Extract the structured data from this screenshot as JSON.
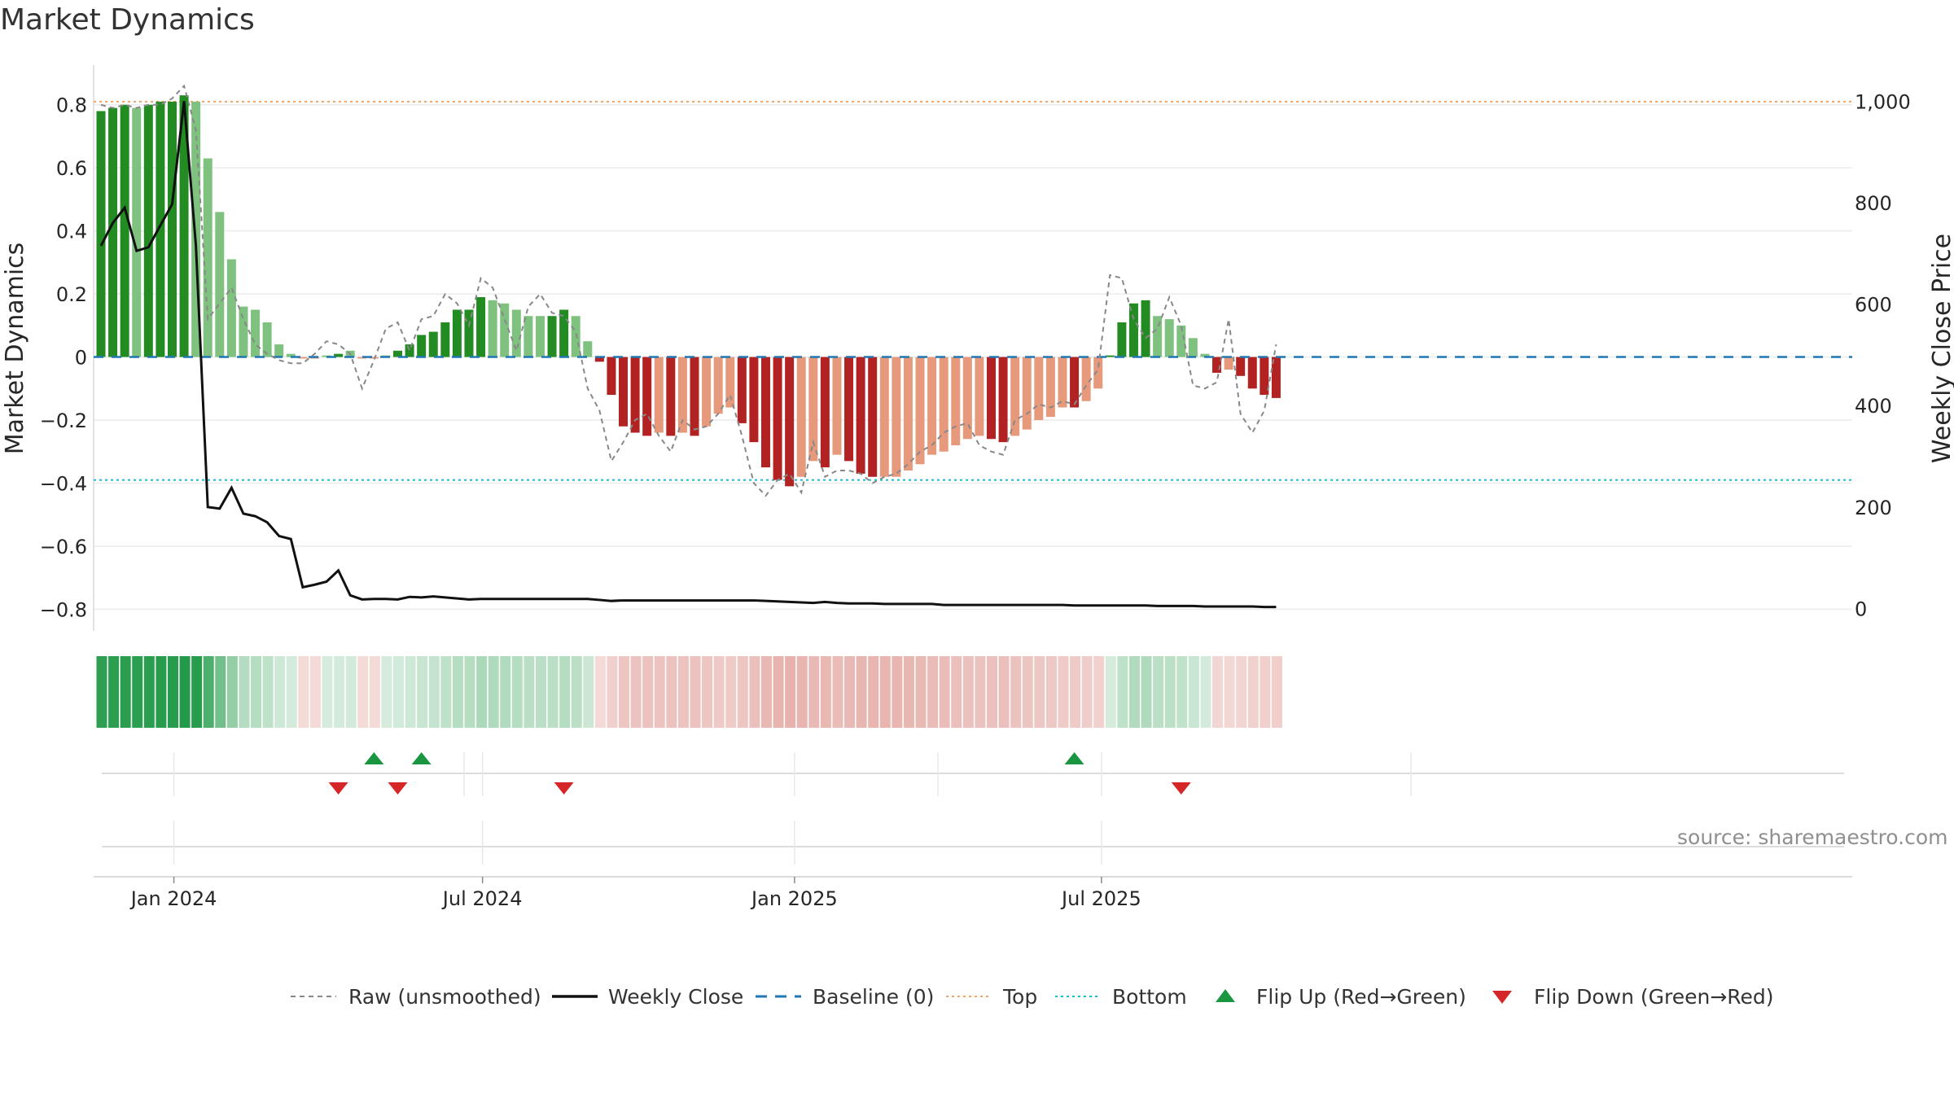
{
  "title": "Market Dynamics",
  "source": "source: sharemaestro.com",
  "colors": {
    "strong_green": "#228b22",
    "light_green": "#7fc17f",
    "strong_red": "#b22222",
    "light_red": "#e79a7b",
    "raw_line": "#888888",
    "close_line": "#111111",
    "baseline": "#1f77b4",
    "top_line": "#f4a460",
    "bottom_line": "#17becf",
    "flip_up": "#1a9641",
    "flip_down": "#d62728"
  },
  "chart_data": {
    "type": "bar",
    "x_start": "2023-11-19",
    "x_step_days": 7,
    "y_left": {
      "label": "Market Dynamics",
      "range": [
        -0.83,
        0.9
      ],
      "ticks": [
        0.8,
        0.6,
        0.4,
        0.2,
        0,
        -0.2,
        -0.4,
        -0.6,
        -0.8
      ],
      "tick_labels": [
        "0.8",
        "0.6",
        "0.4",
        "0.2",
        "0",
        "−0.2",
        "−0.4",
        "−0.6",
        "−0.8"
      ]
    },
    "y_right": {
      "label": "Weekly Close Price",
      "range": [
        -20,
        1055
      ],
      "ticks": [
        0,
        200,
        400,
        600,
        800,
        1000
      ],
      "tick_labels": [
        "0",
        "200",
        "400",
        "600",
        "800",
        "1,000"
      ]
    },
    "x_ticks": [
      {
        "date": "2024-01-01",
        "label": "Jan 2024"
      },
      {
        "date": "2024-07-01",
        "label": "Jul 2024"
      },
      {
        "date": "2025-01-01",
        "label": "Jan 2025"
      },
      {
        "date": "2025-07-01",
        "label": "Jul 2025"
      }
    ],
    "top_threshold": 0.81,
    "bottom_threshold": -0.39,
    "baseline": 0,
    "series": [
      {
        "name": "Market Dynamics",
        "kind": "bar",
        "values": [
          0.78,
          0.79,
          0.8,
          0.79,
          0.8,
          0.81,
          0.81,
          0.83,
          0.81,
          0.63,
          0.46,
          0.31,
          0.16,
          0.15,
          0.11,
          0.04,
          0.01,
          -0.005,
          -0.005,
          0.005,
          0.01,
          0.02,
          -0.005,
          -0.005,
          0.005,
          0.02,
          0.04,
          0.07,
          0.08,
          0.11,
          0.15,
          0.15,
          0.19,
          0.18,
          0.17,
          0.15,
          0.13,
          0.13,
          0.13,
          0.15,
          0.13,
          0.05,
          -0.015,
          -0.12,
          -0.22,
          -0.24,
          -0.25,
          -0.24,
          -0.25,
          -0.24,
          -0.25,
          -0.22,
          -0.18,
          -0.16,
          -0.21,
          -0.27,
          -0.35,
          -0.39,
          -0.41,
          -0.38,
          -0.33,
          -0.35,
          -0.31,
          -0.33,
          -0.37,
          -0.38,
          -0.38,
          -0.38,
          -0.36,
          -0.34,
          -0.31,
          -0.3,
          -0.28,
          -0.26,
          -0.25,
          -0.26,
          -0.27,
          -0.25,
          -0.23,
          -0.2,
          -0.19,
          -0.16,
          -0.16,
          -0.14,
          -0.1,
          0.005,
          0.11,
          0.17,
          0.18,
          0.13,
          0.12,
          0.1,
          0.06,
          0.01,
          -0.05,
          -0.04,
          -0.06,
          -0.1,
          -0.12,
          -0.13
        ],
        "strength": [
          "s",
          "s",
          "s",
          "l",
          "s",
          "s",
          "s",
          "s",
          "l",
          "l",
          "l",
          "l",
          "l",
          "l",
          "l",
          "l",
          "l",
          "l",
          "l",
          "l",
          "s",
          "l",
          "l",
          "l",
          "l",
          "s",
          "s",
          "s",
          "s",
          "s",
          "s",
          "s",
          "s",
          "l",
          "l",
          "l",
          "l",
          "l",
          "s",
          "s",
          "l",
          "l",
          "s",
          "s",
          "s",
          "s",
          "s",
          "l",
          "s",
          "l",
          "s",
          "l",
          "l",
          "l",
          "s",
          "s",
          "s",
          "s",
          "s",
          "l",
          "l",
          "s",
          "l",
          "s",
          "s",
          "s",
          "l",
          "l",
          "l",
          "l",
          "l",
          "l",
          "l",
          "l",
          "l",
          "s",
          "s",
          "l",
          "l",
          "l",
          "l",
          "l",
          "s",
          "l",
          "l",
          "s",
          "s",
          "s",
          "s",
          "l",
          "l",
          "l",
          "l",
          "l",
          "s",
          "l",
          "s",
          "s",
          "s",
          "s"
        ]
      },
      {
        "name": "Raw (unsmoothed)",
        "kind": "line",
        "values": [
          0.8,
          0.79,
          0.8,
          0.79,
          0.8,
          0.8,
          0.82,
          0.86,
          0.72,
          0.12,
          0.17,
          0.22,
          0.12,
          0.04,
          0.01,
          -0.01,
          -0.02,
          -0.02,
          0.01,
          0.05,
          0.04,
          0.01,
          -0.1,
          -0.01,
          0.09,
          0.11,
          0.02,
          0.12,
          0.13,
          0.2,
          0.17,
          0.1,
          0.25,
          0.22,
          0.12,
          0.02,
          0.16,
          0.2,
          0.14,
          0.13,
          0.08,
          -0.1,
          -0.17,
          -0.33,
          -0.27,
          -0.2,
          -0.18,
          -0.25,
          -0.3,
          -0.2,
          -0.23,
          -0.22,
          -0.18,
          -0.12,
          -0.25,
          -0.4,
          -0.44,
          -0.39,
          -0.37,
          -0.43,
          -0.27,
          -0.38,
          -0.36,
          -0.36,
          -0.37,
          -0.4,
          -0.38,
          -0.37,
          -0.34,
          -0.3,
          -0.28,
          -0.24,
          -0.22,
          -0.21,
          -0.28,
          -0.3,
          -0.31,
          -0.2,
          -0.18,
          -0.15,
          -0.16,
          -0.14,
          -0.15,
          -0.09,
          -0.04,
          0.26,
          0.25,
          0.12,
          0.06,
          0.09,
          0.19,
          0.1,
          -0.09,
          -0.1,
          -0.08,
          0.12,
          -0.18,
          -0.24,
          -0.17,
          0.04
        ]
      },
      {
        "name": "Weekly Close",
        "kind": "line",
        "axis": "right",
        "values": [
          715,
          760,
          790,
          705,
          712,
          755,
          797,
          1000,
          715,
          200,
          197,
          238,
          187,
          182,
          170,
          143,
          137,
          42,
          47,
          53,
          75,
          26,
          18,
          19,
          19,
          18,
          23,
          22,
          24,
          22,
          20,
          18,
          19,
          19,
          19,
          19,
          19,
          19,
          19,
          19,
          19,
          19,
          17,
          15,
          16,
          16,
          16,
          16,
          16,
          16,
          16,
          16,
          16,
          16,
          16,
          16,
          15,
          14,
          13,
          12,
          11,
          13,
          11,
          10,
          10,
          10,
          9,
          9,
          9,
          9,
          9,
          7,
          7,
          7,
          7,
          7,
          7,
          7,
          7,
          7,
          7,
          7,
          6,
          6,
          6,
          6,
          6,
          6,
          6,
          5,
          5,
          5,
          5,
          4,
          4,
          4,
          4,
          4,
          3,
          3
        ]
      }
    ],
    "flips": {
      "up": [
        "2024-04-28",
        "2024-05-26",
        "2025-06-15"
      ],
      "down": [
        "2024-04-07",
        "2024-05-12",
        "2024-08-18",
        "2025-08-17"
      ]
    },
    "legend": {
      "placement": "bottom",
      "items": [
        {
          "label": "Raw (unsmoothed)",
          "style": "dashed-grey"
        },
        {
          "label": "Weekly Close",
          "style": "solid-black"
        },
        {
          "label": "Baseline (0)",
          "style": "dashed-blue"
        },
        {
          "label": "Top",
          "style": "dotted-orange"
        },
        {
          "label": "Bottom",
          "style": "dotted-cyan"
        },
        {
          "label": "Flip Up (Red→Green)",
          "style": "triangle-up-green"
        },
        {
          "label": "Flip Down (Green→Red)",
          "style": "triangle-down-red"
        }
      ]
    }
  }
}
